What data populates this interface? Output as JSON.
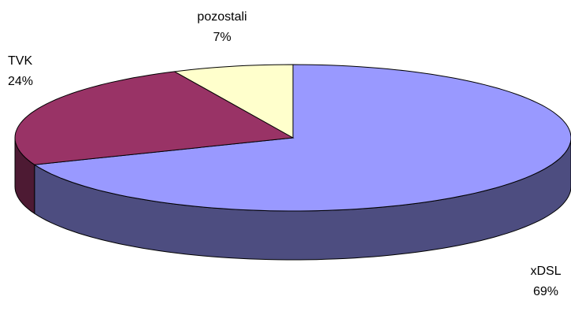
{
  "chart_data": {
    "type": "pie",
    "three_d": true,
    "categories": [
      "xDSL",
      "TVK",
      "pozostali"
    ],
    "values": [
      69,
      24,
      7
    ],
    "value_labels": [
      "69%",
      "24%",
      "7%"
    ],
    "colors": [
      "#9999ff",
      "#993366",
      "#ffffcc"
    ]
  }
}
